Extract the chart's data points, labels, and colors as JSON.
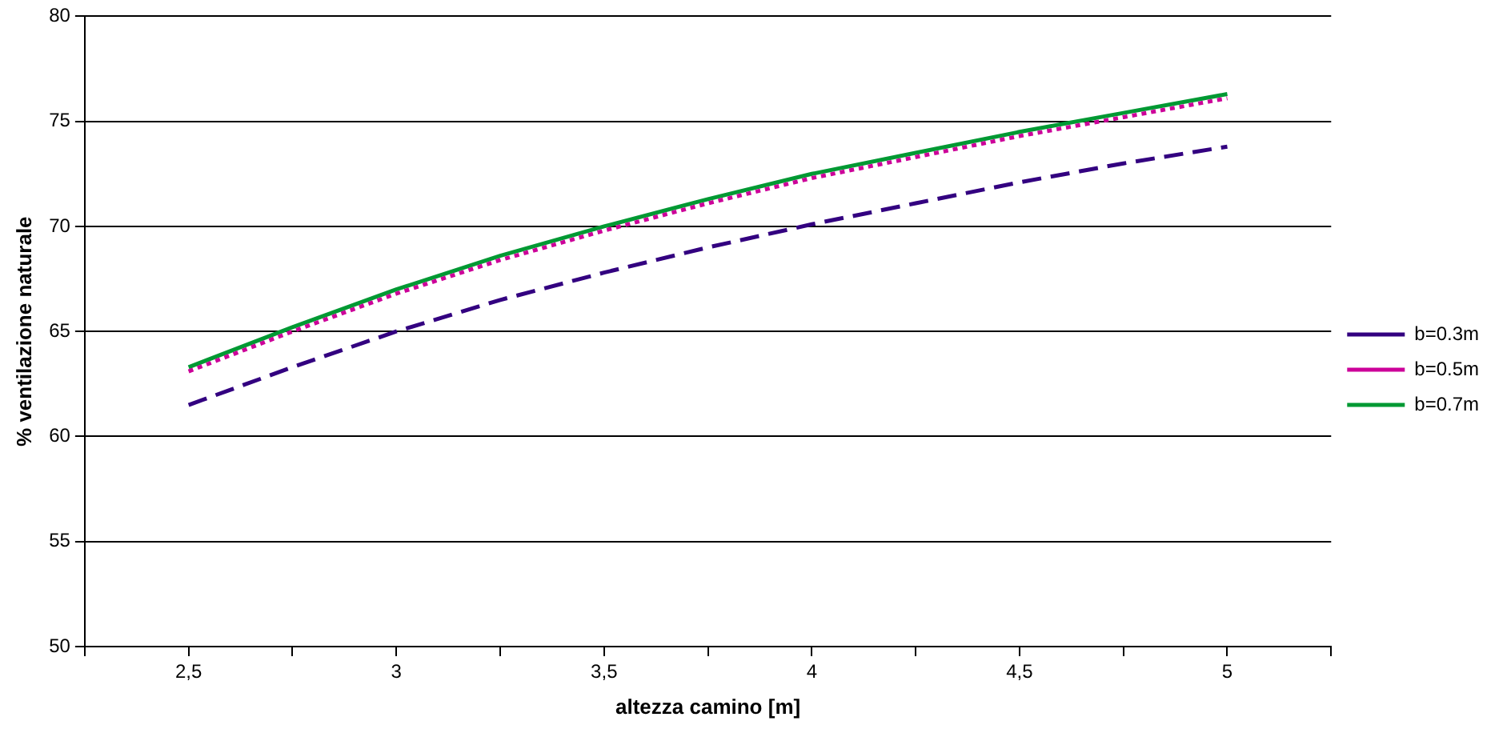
{
  "chart_data": {
    "type": "line",
    "xlabel": "altezza camino [m]",
    "ylabel": "% ventilazione naturale",
    "xlim": [
      2.25,
      5.25
    ],
    "xticks": [
      {
        "value": 2.25,
        "label": null
      },
      {
        "value": 2.5,
        "label": "2,5"
      },
      {
        "value": 2.75,
        "label": null
      },
      3,
      {
        "value": 3.25,
        "label": null
      },
      {
        "value": 3.5,
        "label": "3,5"
      },
      {
        "value": 3.75,
        "label": null
      },
      4,
      {
        "value": 4.25,
        "label": null
      },
      {
        "value": 4.5,
        "label": "4,5"
      },
      {
        "value": 4.75,
        "label": null
      },
      5,
      {
        "value": 5.25,
        "label": null
      }
    ],
    "ylim": [
      50,
      80
    ],
    "yticks": [
      50,
      55,
      60,
      65,
      70,
      75,
      80
    ],
    "grid": "y",
    "legend": "right",
    "marker": "none",
    "x": [
      2.5,
      2.75,
      3,
      3.25,
      3.5,
      3.75,
      4,
      4.25,
      4.5,
      4.75,
      5
    ],
    "series": [
      {
        "name": "b=0.3m",
        "color": "#330080",
        "line_style": "dashed",
        "values": [
          61.5,
          63.3,
          65.0,
          66.5,
          67.8,
          69.0,
          70.1,
          71.1,
          72.1,
          73.0,
          73.8
        ]
      },
      {
        "name": "b=0.5m",
        "color": "#cc0099",
        "line_style": "dotted",
        "values": [
          63.1,
          65.0,
          66.8,
          68.4,
          69.8,
          71.1,
          72.3,
          73.3,
          74.3,
          75.2,
          76.1
        ]
      },
      {
        "name": "b=0.7m",
        "color": "#009933",
        "line_style": "solid",
        "values": [
          63.3,
          65.2,
          67.0,
          68.6,
          70.0,
          71.3,
          72.5,
          73.5,
          74.5,
          75.4,
          76.3
        ]
      }
    ]
  }
}
